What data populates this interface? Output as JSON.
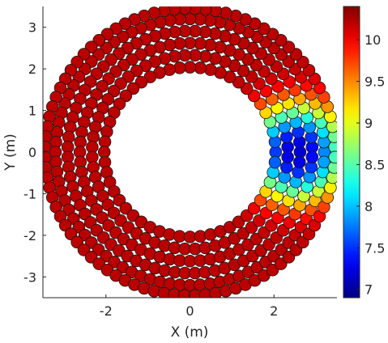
{
  "chart_data": {
    "type": "scatter",
    "title": "",
    "xlabel": "X (m)",
    "ylabel": "Y (m)",
    "xlim": [
      -3.5,
      3.5
    ],
    "ylim": [
      -3.5,
      3.5
    ],
    "x_ticks": [
      -2,
      0,
      2
    ],
    "x_tick_labels": [
      "-2",
      "0",
      "2"
    ],
    "y_ticks": [
      -3,
      -2,
      -1,
      0,
      1,
      2,
      3
    ],
    "y_tick_labels": [
      "-3",
      "-2",
      "-1",
      "0",
      "1",
      "2",
      "3"
    ],
    "grid": false,
    "marker": "filled circle",
    "colormap": "jet",
    "colorbar": {
      "placement": "right",
      "limits": [
        6.9,
        10.4
      ],
      "ticks": [
        7,
        7.5,
        8,
        8.5,
        9,
        9.5,
        10
      ],
      "tick_labels": [
        "7",
        "7.5",
        "8",
        "8.5",
        "9",
        "9.5",
        "10"
      ]
    },
    "layout": {
      "shape": "annulus of points",
      "inner_radius": 2.0,
      "outer_radius": 3.45,
      "rings": [
        {
          "radius": 2.04,
          "count": 52
        },
        {
          "radius": 2.33,
          "count": 60
        },
        {
          "radius": 2.62,
          "count": 68
        },
        {
          "radius": 2.91,
          "count": 76
        },
        {
          "radius": 3.2,
          "count": 84
        },
        {
          "radius": 3.45,
          "count": 88
        }
      ]
    },
    "value_field": {
      "background_value": 10.2,
      "minimum_value": 7.2,
      "minimum_location": [
        2.55,
        0.0
      ],
      "affected_region": "right side of annulus, centred near (2.55, 0)"
    }
  }
}
